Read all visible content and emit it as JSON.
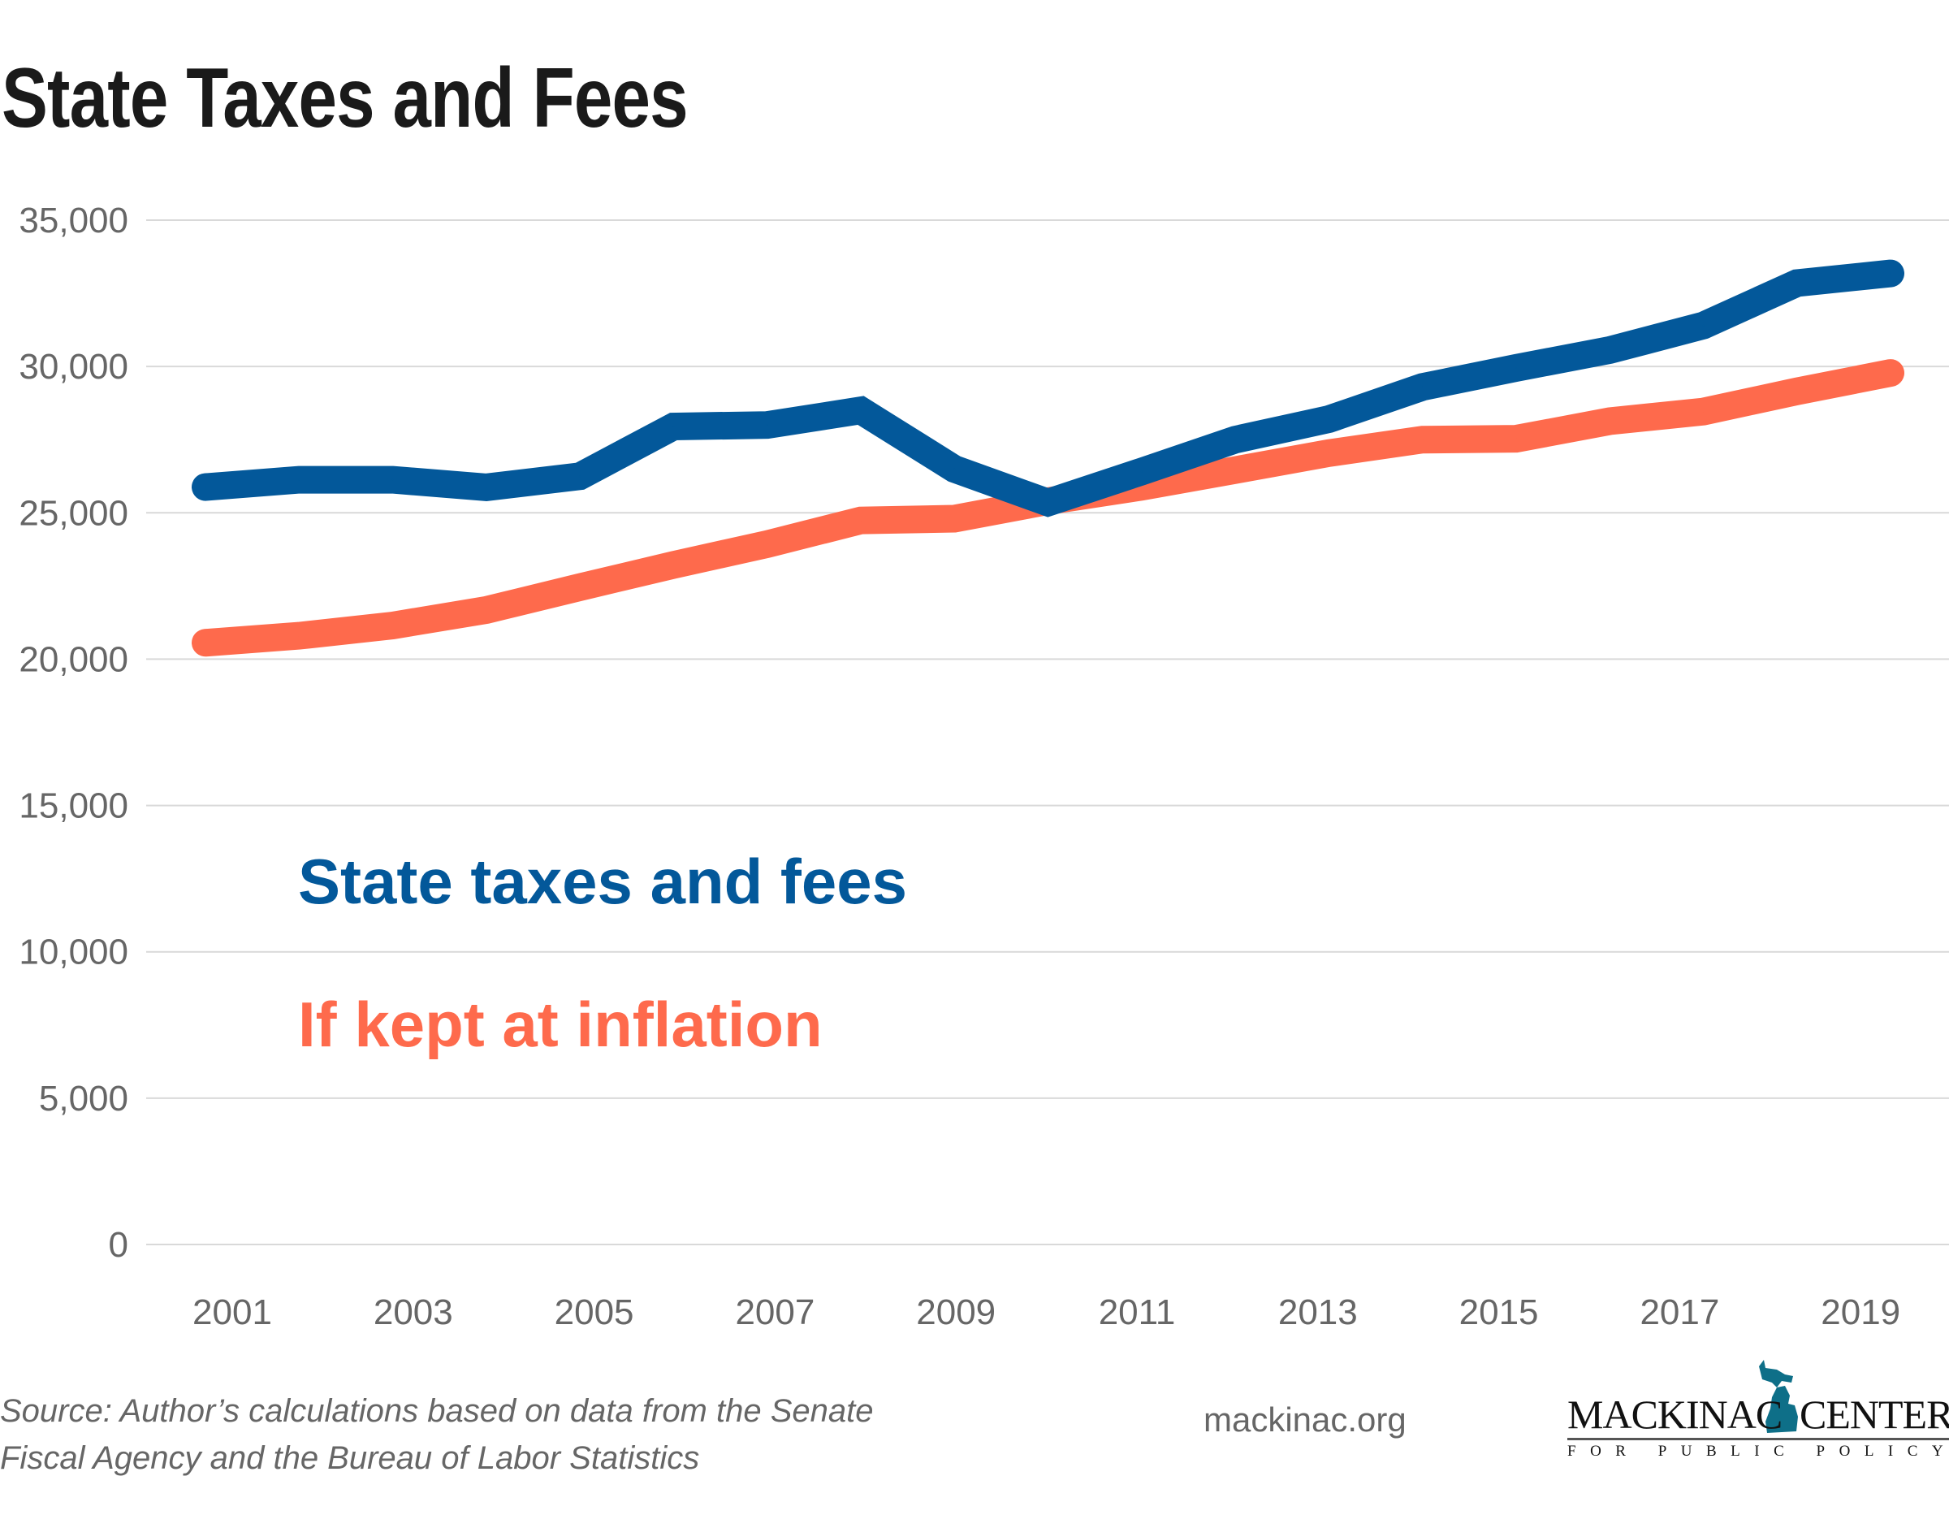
{
  "title": "State Taxes and Fees",
  "chart_data": {
    "type": "line",
    "title": "State Taxes and Fees",
    "xlabel": "",
    "ylabel": "",
    "x": [
      2001,
      2002,
      2003,
      2004,
      2005,
      2006,
      2007,
      2008,
      2009,
      2010,
      2011,
      2012,
      2013,
      2014,
      2015,
      2016,
      2017,
      2018,
      2019
    ],
    "x_ticks": [
      "2001",
      "2003",
      "2005",
      "2007",
      "2009",
      "2011",
      "2013",
      "2015",
      "2017",
      "2019"
    ],
    "y_ticks": [
      "0",
      "5,000",
      "10,000",
      "15,000",
      "20,000",
      "25,000",
      "30,000",
      "35,000"
    ],
    "ylim": [
      0,
      35000
    ],
    "grid": true,
    "series": [
      {
        "name": "State taxes and fees",
        "color": "#03589a",
        "values": [
          25880,
          26130,
          26130,
          25870,
          26250,
          27950,
          28000,
          28500,
          26500,
          25350,
          26410,
          27500,
          28200,
          29300,
          29950,
          30560,
          31400,
          32850,
          33180
        ]
      },
      {
        "name": "If kept at inflation",
        "color": "#fe6a4c",
        "values": [
          20560,
          20800,
          21150,
          21680,
          22460,
          23220,
          23930,
          24740,
          24800,
          25400,
          25890,
          26460,
          27040,
          27500,
          27530,
          28130,
          28460,
          29150,
          29780
        ]
      }
    ]
  },
  "legend": {
    "blue": "State taxes and fees",
    "orange": "If kept at inflation"
  },
  "footer": {
    "source_line1": "Source: Author’s calculations based on data from the Senate",
    "source_line2": "Fiscal Agency and the Bureau of Labor Statistics",
    "site": "mackinac.org",
    "logo_name": "MACKINAC CENTER",
    "logo_sub": "FOR PUBLIC POLICY"
  }
}
